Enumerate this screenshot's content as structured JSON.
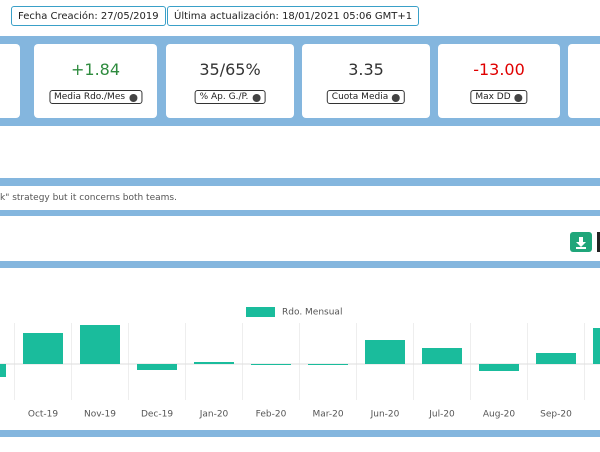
{
  "header": {
    "creation": "Fecha Creación: 27/05/2019",
    "updated": "Última actualización: 18/01/2021 05:06 GMT+1"
  },
  "stats": [
    {
      "value": "+1.84",
      "label": "Media Rdo./Mes"
    },
    {
      "value": "35/65%",
      "label": "% Ap. G./P."
    },
    {
      "value": "3.35",
      "label": "Cuota Media"
    },
    {
      "value": "-13.00",
      "label": "Max DD"
    }
  ],
  "note": "k\" strategy but it concerns both teams.",
  "chart_data": {
    "type": "bar",
    "legend": "Rdo. Mensual",
    "color": "#1abc9c",
    "categories": [
      null,
      "Oct-19",
      "Nov-19",
      "Dec-19",
      "Jan-20",
      "Feb-20",
      "Mar-20",
      "Jun-20",
      "Jul-20",
      "Aug-20",
      "Sep-20",
      null
    ],
    "values": [
      -1.3,
      3.1,
      3.9,
      -0.6,
      0.2,
      0,
      -0.1,
      2.4,
      1.6,
      -0.7,
      1.1,
      3.6
    ]
  }
}
